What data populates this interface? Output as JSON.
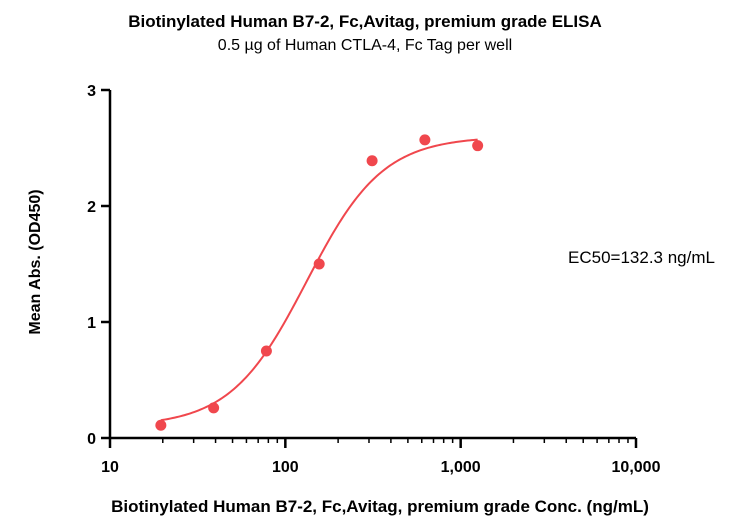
{
  "chart_data": {
    "type": "scatter",
    "title": "Biotinylated Human B7-2, Fc,Avitag, premium grade ELISA",
    "subtitle": "0.5 µg of Human CTLA-4, Fc Tag per well",
    "xlabel": "Biotinylated Human B7-2, Fc,Avitag, premium grade Conc. (ng/mL)",
    "ylabel": "Mean Abs. (OD450)",
    "x_scale": "log",
    "xlim": [
      10,
      10000
    ],
    "ylim": [
      0,
      3
    ],
    "x_ticks": [
      10,
      100,
      1000,
      10000
    ],
    "x_tick_labels": [
      "10",
      "100",
      "1,000",
      "10,000"
    ],
    "y_ticks": [
      0,
      1,
      2,
      3
    ],
    "y_tick_labels": [
      "0",
      "1",
      "2",
      "3"
    ],
    "annotation": "EC50=132.3 ng/mL",
    "series": [
      {
        "x": [
          19.5,
          39,
          78,
          156,
          312.5,
          625,
          1250
        ],
        "y": [
          0.11,
          0.26,
          0.75,
          1.5,
          2.39,
          2.57,
          2.52
        ],
        "color": "#f0474d",
        "fit": {
          "model": "4PL",
          "bottom": 0.1,
          "top": 2.6,
          "ec50": 132.3,
          "hill": 2.0,
          "x_range": [
            19.5,
            1250
          ]
        }
      }
    ],
    "grid": false
  }
}
